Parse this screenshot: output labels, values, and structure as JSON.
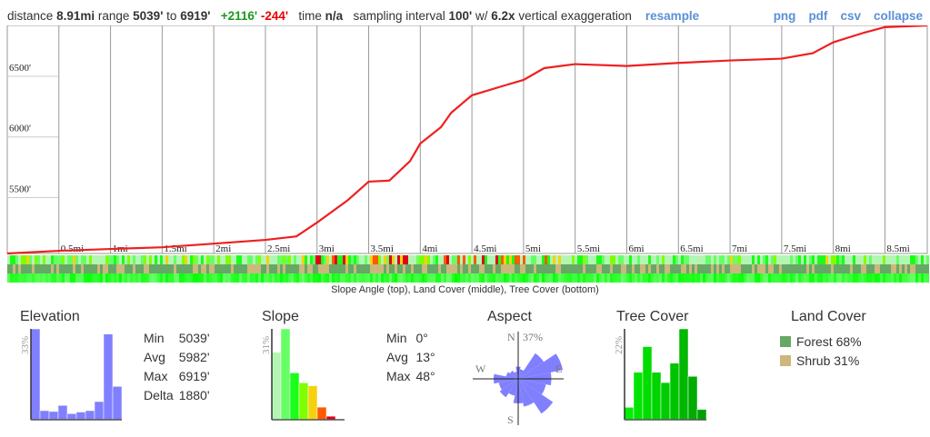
{
  "header": {
    "distance_label": "distance",
    "distance": "8.91mi",
    "range_label": "range",
    "range_min": "5039'",
    "range_to": "to",
    "range_max": "6919'",
    "gain": "+2116'",
    "loss": "-244'",
    "time_label": "time",
    "time": "n/a",
    "sampling_label": "sampling interval",
    "sampling": "100'",
    "w_label": "w/",
    "exaggeration": "6.2x",
    "exag_label": "vertical exaggeration",
    "resample": "resample",
    "links": [
      "png",
      "pdf",
      "csv",
      "collapse"
    ]
  },
  "chart_data": {
    "type": "line",
    "title": "Elevation profile",
    "ylim": [
      5039,
      6919
    ],
    "xlim": [
      0,
      8.91
    ],
    "y_ticks": [
      "5500'",
      "6000'",
      "6500'"
    ],
    "y_tick_values": [
      5500,
      6000,
      6500
    ],
    "x_ticks": [
      "0.5mi",
      "1mi",
      "1.5mi",
      "2mi",
      "2.5mi",
      "3mi",
      "3.5mi",
      "4mi",
      "4.5mi",
      "5mi",
      "5.5mi",
      "6mi",
      "6.5mi",
      "7mi",
      "7.5mi",
      "8mi",
      "8.5mi"
    ],
    "x_tick_values": [
      0.5,
      1,
      1.5,
      2,
      2.5,
      3,
      3.5,
      4,
      4.5,
      5,
      5.5,
      6,
      6.5,
      7,
      7.5,
      8,
      8.5
    ],
    "x": [
      0,
      0.5,
      1,
      1.5,
      2,
      2.5,
      2.8,
      3,
      3.3,
      3.5,
      3.7,
      3.9,
      4,
      4.2,
      4.3,
      4.5,
      4.8,
      5,
      5.2,
      5.5,
      6,
      6.5,
      7,
      7.5,
      7.8,
      8,
      8.3,
      8.5,
      8.91
    ],
    "y": [
      5039,
      5061,
      5076,
      5090,
      5120,
      5151,
      5180,
      5294,
      5480,
      5631,
      5640,
      5800,
      5945,
      6080,
      6200,
      6343,
      6420,
      6470,
      6567,
      6600,
      6585,
      6610,
      6630,
      6645,
      6690,
      6780,
      6860,
      6905,
      6919
    ],
    "color": "#ee2020"
  },
  "strip_caption": "Slope Angle (top), Land Cover (middle), Tree Cover (bottom)",
  "elevation": {
    "title": "Elevation",
    "max_label": "33%",
    "bars": [
      33,
      3.3,
      3.0,
      5.2,
      2.2,
      2.8,
      3.3,
      6.6,
      31.1,
      12.1
    ],
    "color": "#8080ff",
    "stats": [
      [
        "Min",
        "5039'"
      ],
      [
        "Avg",
        "5982'"
      ],
      [
        "Max",
        "6919'"
      ],
      [
        "Delta",
        "1880'"
      ]
    ]
  },
  "slope": {
    "title": "Slope",
    "max_label": "31%",
    "bars": [
      23,
      31,
      16,
      12.6,
      11.6,
      4.3,
      1.2,
      0.3
    ],
    "colors": [
      "#b3f5b3",
      "#66ff66",
      "#1aff1a",
      "#80ff00",
      "#f5d20f",
      "#ff5a00",
      "#e0001a",
      "#778"
    ],
    "stats": [
      [
        "Min",
        "0°"
      ],
      [
        "Avg",
        "13°"
      ],
      [
        "Max",
        "48°"
      ]
    ]
  },
  "aspect": {
    "title": "Aspect",
    "max_label": "37%",
    "n": "N",
    "e": "E",
    "s": "S",
    "w": "W",
    "color": "#8080ff",
    "petals": [
      10,
      8,
      25,
      37,
      27,
      23,
      34,
      23,
      20,
      14,
      18,
      16,
      20,
      10,
      8,
      6
    ]
  },
  "tree_cover": {
    "title": "Tree Cover",
    "max_label": "22%",
    "bars": [
      3,
      11.5,
      17.7,
      11.5,
      9,
      13.7,
      22,
      10.5,
      2.5
    ],
    "colors": [
      "#00f000",
      "#00e400",
      "#00dc00",
      "#00d400",
      "#00cc00",
      "#00c400",
      "#00b800",
      "#00ac00",
      "#00a000"
    ]
  },
  "land_cover": {
    "title": "Land Cover",
    "items": [
      {
        "label": "Forest 68%",
        "color": "#66a866"
      },
      {
        "label": "Shrub 31%",
        "color": "#cdb77c"
      }
    ]
  }
}
